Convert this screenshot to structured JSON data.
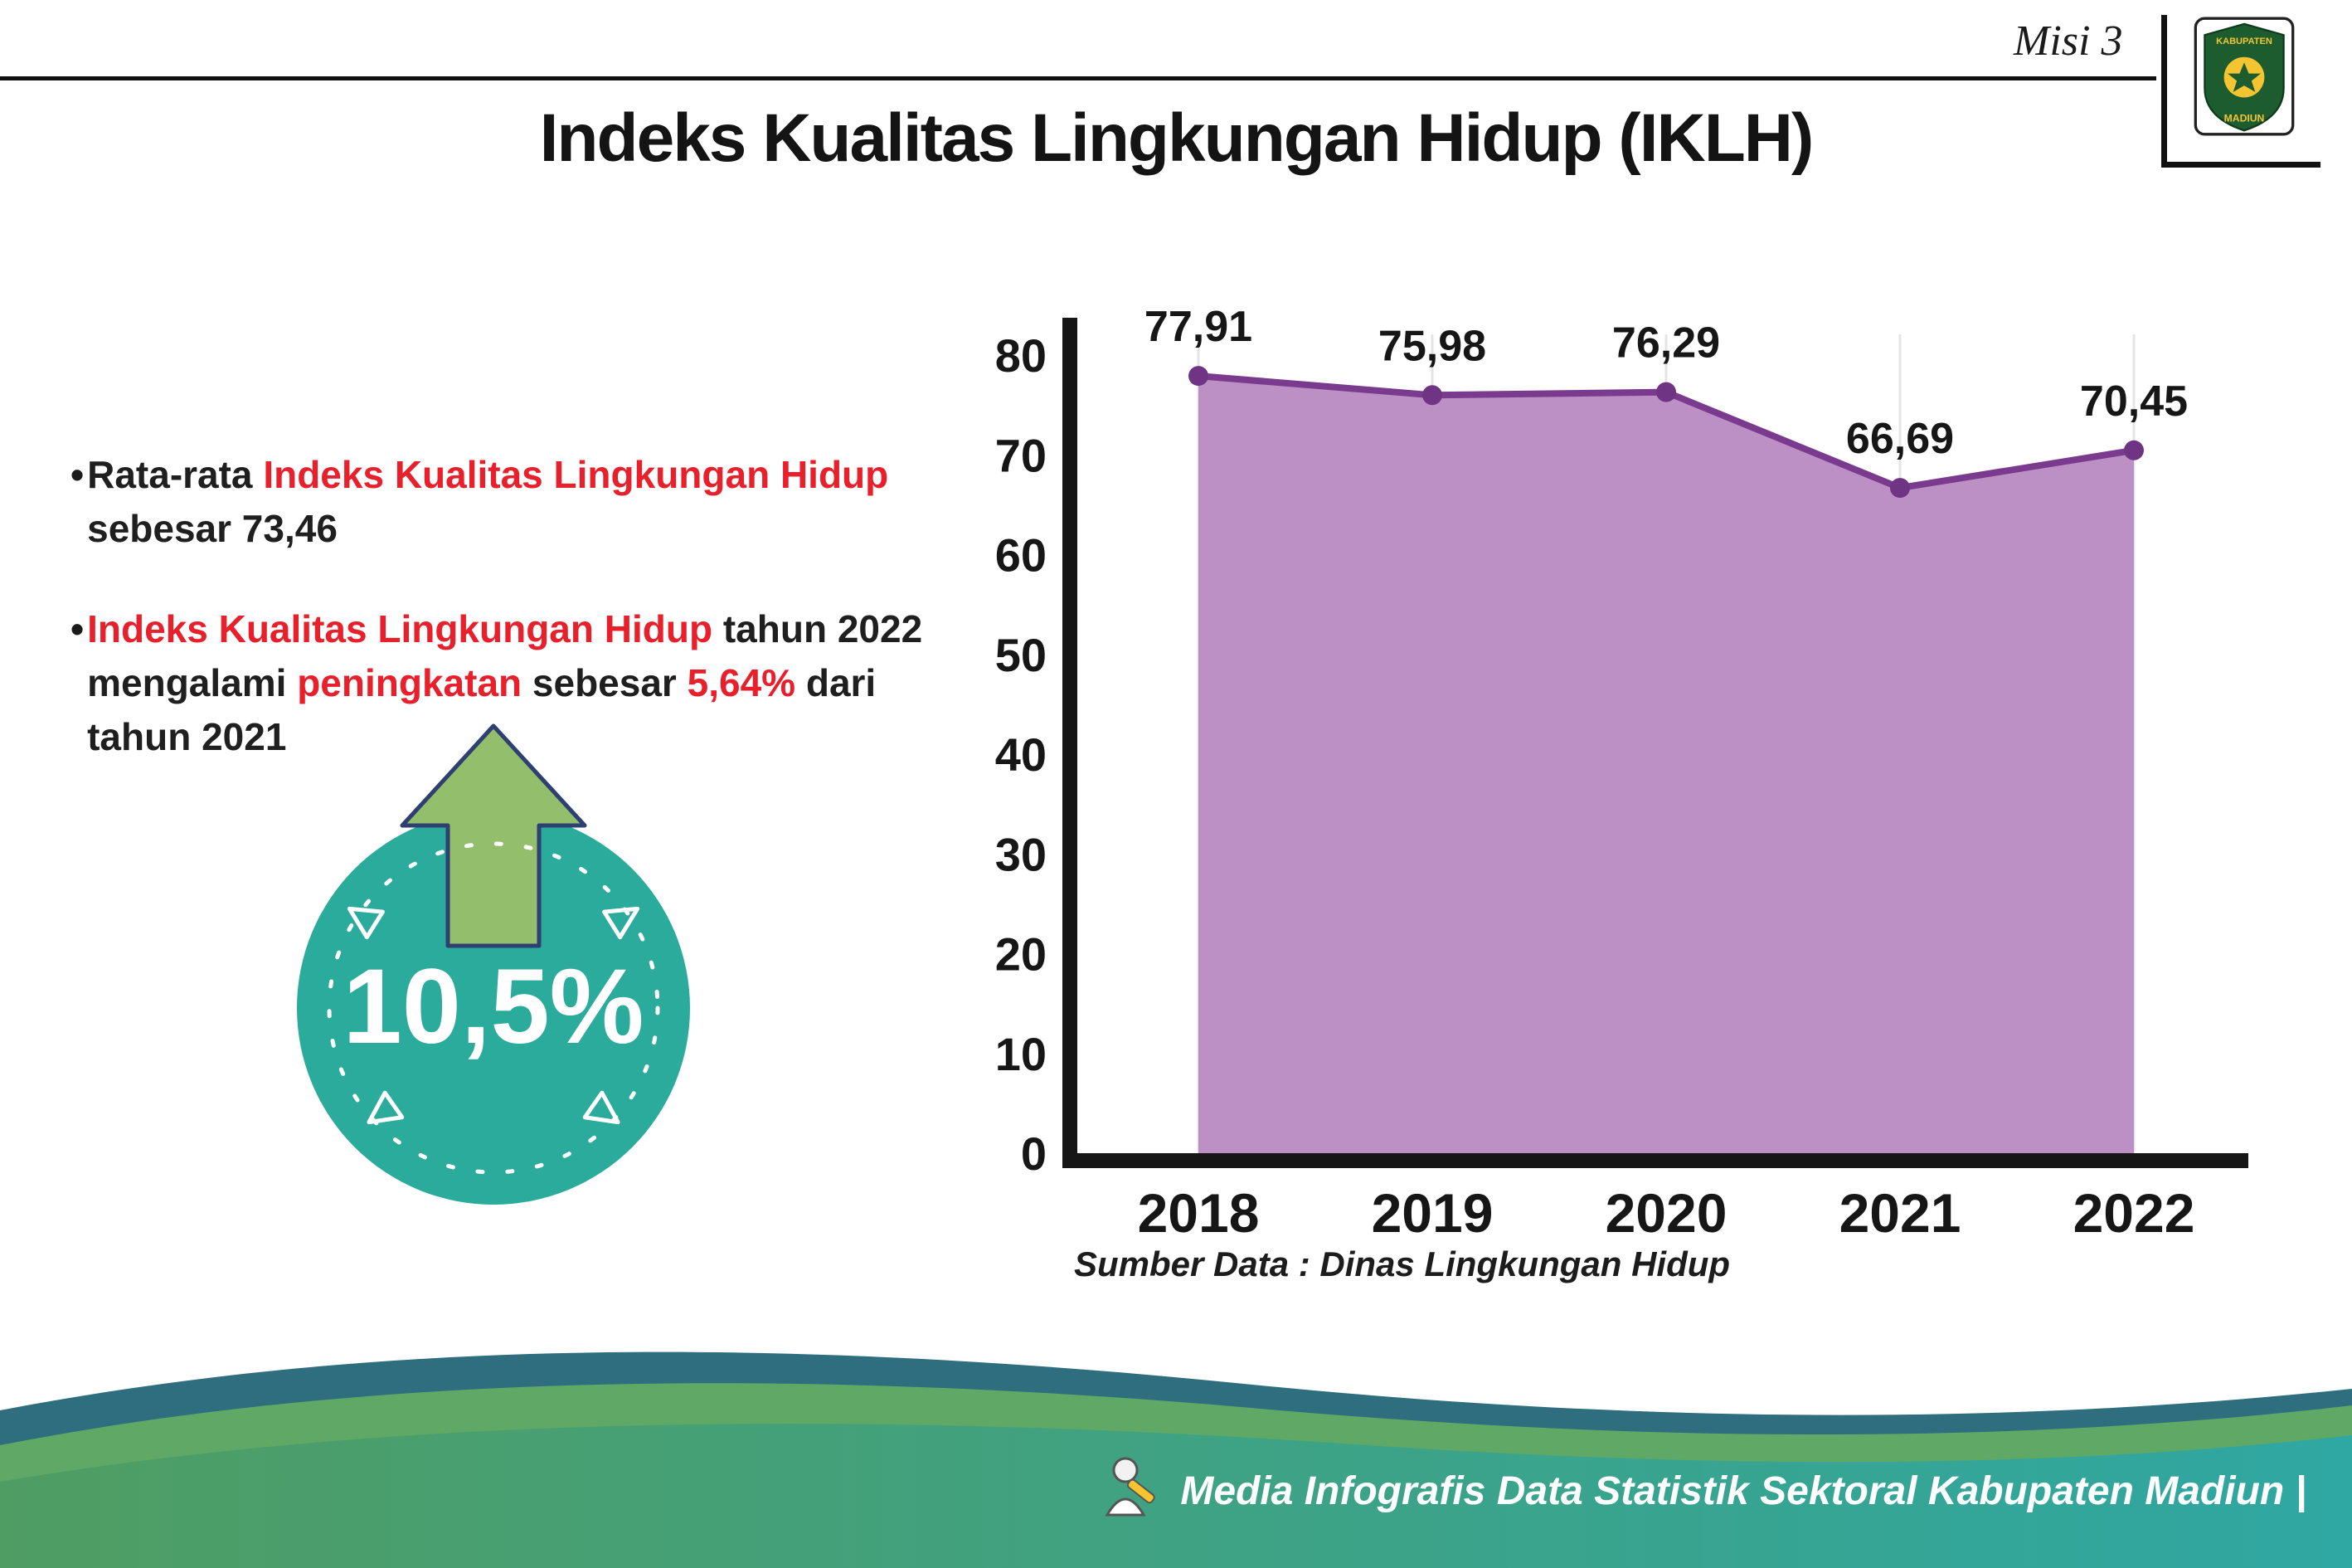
{
  "header": {
    "misi": "Misi 3",
    "title": "Indeks Kualitas Lingkungan Hidup (IKLH)"
  },
  "logo": {
    "top": "KABUPATEN",
    "bottom": "MADIUN"
  },
  "bullets": [
    {
      "dot": "•",
      "segments": [
        {
          "t": "Rata-rata ",
          "c": "#1f1f1f"
        },
        {
          "t": "Indeks Kualitas Lingkungan Hidup",
          "c": "#e8202c"
        },
        {
          "t": "\nsebesar 73,46",
          "c": "#1f1f1f"
        }
      ]
    },
    {
      "dot": "•",
      "segments": [
        {
          "t": "Indeks Kualitas Lingkungan Hidup",
          "c": "#e8202c"
        },
        {
          "t": " tahun 2022\nmengalami ",
          "c": "#1f1f1f"
        },
        {
          "t": "peningkatan",
          "c": "#e8202c"
        },
        {
          "t": " sebesar ",
          "c": "#1f1f1f"
        },
        {
          "t": "5,64%",
          "c": "#e8202c"
        },
        {
          "t": " dari\ntahun 2021",
          "c": "#1f1f1f"
        }
      ]
    }
  ],
  "badge": {
    "percent": "10,5%"
  },
  "chart_data": {
    "type": "area",
    "title": "Indeks Kualitas Lingkungan Hidup (IKLH)",
    "categories": [
      "2018",
      "2019",
      "2020",
      "2021",
      "2022"
    ],
    "values": [
      77.91,
      75.98,
      76.29,
      66.69,
      70.45
    ],
    "value_labels": [
      "77,91",
      "75,98",
      "76,29",
      "66,69",
      "70,45"
    ],
    "ylim": [
      0,
      80
    ],
    "yticks": [
      0,
      10,
      20,
      30,
      40,
      50,
      60,
      70,
      80
    ],
    "grid": "faint-vertical",
    "legend": "none",
    "source": "Sumber Data : Dinas Lingkungan Hidup",
    "colors": {
      "area": "#bc8fc5",
      "line": "#7a3b8f",
      "marker": "#6f3483",
      "axis": "#161616",
      "grid": "#e4e4e4",
      "label": "#161616"
    }
  },
  "footer": {
    "caption": "Media Infografis Data Statistik Sektoral Kabupaten Madiun |"
  }
}
